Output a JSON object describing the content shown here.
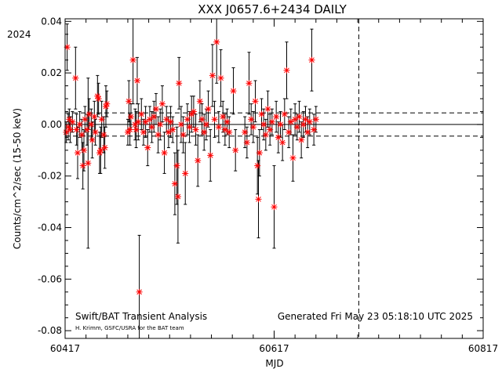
{
  "chart_data": {
    "type": "scatter",
    "title": "XXX J0657.6+2434 DAILY",
    "year_label": "2024",
    "xlabel": "MJD",
    "ylabel": "Counts/cm^2/sec (15-50 keV)",
    "xlim": [
      60417,
      60817
    ],
    "ylim": [
      -0.083,
      0.041
    ],
    "xticks": [
      60417,
      60617,
      60817
    ],
    "yticks": [
      -0.08,
      -0.06,
      -0.04,
      -0.02,
      0.0,
      0.02,
      0.04
    ],
    "ytick_labels": [
      "-0.08",
      "-0.06",
      "-0.04",
      "-0.02",
      "0.00",
      "0.02",
      "0.04"
    ],
    "reference_lines": {
      "zero": 0.0,
      "upper_dashed": 0.0045,
      "lower_dashed": -0.0045,
      "vertical_dashed_mjd": 60698
    },
    "footer_left": "Swift/BAT Transient Analysis",
    "footer_credit": "H. Krimm, GSFC/USRA for the BAT team",
    "footer_right": "Generated Fri May 23 05:18:10 UTC 2025",
    "marker_color": "#ff0000",
    "errorbar_color": "#000000",
    "series": [
      {
        "points": [
          {
            "x": 60418,
            "y": -0.003,
            "e": 0.004
          },
          {
            "x": 60419,
            "y": 0.03,
            "e": 0.009
          },
          {
            "x": 60420,
            "y": -0.001,
            "e": 0.005
          },
          {
            "x": 60421,
            "y": 0.002,
            "e": 0.004
          },
          {
            "x": 60422,
            "y": -0.002,
            "e": 0.005
          },
          {
            "x": 60424,
            "y": 0.001,
            "e": 0.004
          },
          {
            "x": 60427,
            "y": 0.018,
            "e": 0.012
          },
          {
            "x": 60428,
            "y": -0.002,
            "e": 0.006
          },
          {
            "x": 60429,
            "y": -0.011,
            "e": 0.01
          },
          {
            "x": 60431,
            "y": 0.0,
            "e": 0.005
          },
          {
            "x": 60433,
            "y": -0.004,
            "e": 0.006
          },
          {
            "x": 60434,
            "y": -0.016,
            "e": 0.009
          },
          {
            "x": 60435,
            "y": -0.01,
            "e": 0.008
          },
          {
            "x": 60436,
            "y": 0.002,
            "e": 0.005
          },
          {
            "x": 60438,
            "y": -0.002,
            "e": 0.006
          },
          {
            "x": 60439,
            "y": -0.015,
            "e": 0.033
          },
          {
            "x": 60440,
            "y": 0.004,
            "e": 0.006
          },
          {
            "x": 60442,
            "y": 0.0,
            "e": 0.006
          },
          {
            "x": 60443,
            "y": -0.006,
            "e": 0.007
          },
          {
            "x": 60445,
            "y": 0.003,
            "e": 0.006
          },
          {
            "x": 60446,
            "y": -0.003,
            "e": 0.005
          },
          {
            "x": 60448,
            "y": 0.011,
            "e": 0.008
          },
          {
            "x": 60449,
            "y": 0.01,
            "e": 0.006
          },
          {
            "x": 60450,
            "y": -0.011,
            "e": 0.008
          },
          {
            "x": 60451,
            "y": -0.01,
            "e": 0.009
          },
          {
            "x": 60452,
            "y": 0.002,
            "e": 0.007
          },
          {
            "x": 60454,
            "y": -0.004,
            "e": 0.007
          },
          {
            "x": 60455,
            "y": -0.009,
            "e": 0.008
          },
          {
            "x": 60456,
            "y": 0.007,
            "e": 0.008
          },
          {
            "x": 60457,
            "y": 0.008,
            "e": 0.005
          },
          {
            "x": 60477,
            "y": -0.003,
            "e": 0.005
          },
          {
            "x": 60478,
            "y": 0.009,
            "e": 0.008
          },
          {
            "x": 60479,
            "y": -0.002,
            "e": 0.006
          },
          {
            "x": 60480,
            "y": 0.003,
            "e": 0.005
          },
          {
            "x": 60482,
            "y": 0.025,
            "e": 0.017
          },
          {
            "x": 60484,
            "y": 0.0,
            "e": 0.006
          },
          {
            "x": 60485,
            "y": -0.002,
            "e": 0.007
          },
          {
            "x": 60486,
            "y": 0.017,
            "e": 0.009
          },
          {
            "x": 60487,
            "y": 0.001,
            "e": 0.007
          },
          {
            "x": 60488,
            "y": -0.065,
            "e": 0.022
          },
          {
            "x": 60490,
            "y": 0.004,
            "e": 0.006
          },
          {
            "x": 60492,
            "y": -0.003,
            "e": 0.005
          },
          {
            "x": 60494,
            "y": 0.001,
            "e": 0.006
          },
          {
            "x": 60496,
            "y": -0.009,
            "e": 0.007
          },
          {
            "x": 60498,
            "y": 0.002,
            "e": 0.005
          },
          {
            "x": 60500,
            "y": -0.001,
            "e": 0.006
          },
          {
            "x": 60502,
            "y": 0.003,
            "e": 0.006
          },
          {
            "x": 60504,
            "y": 0.006,
            "e": 0.006
          },
          {
            "x": 60506,
            "y": -0.004,
            "e": 0.007
          },
          {
            "x": 60508,
            "y": 0.0,
            "e": 0.006
          },
          {
            "x": 60510,
            "y": 0.008,
            "e": 0.007
          },
          {
            "x": 60512,
            "y": -0.011,
            "e": 0.008
          },
          {
            "x": 60514,
            "y": 0.002,
            "e": 0.005
          },
          {
            "x": 60516,
            "y": -0.003,
            "e": 0.006
          },
          {
            "x": 60518,
            "y": 0.001,
            "e": 0.006
          },
          {
            "x": 60520,
            "y": -0.002,
            "e": 0.005
          },
          {
            "x": 60522,
            "y": -0.023,
            "e": 0.012
          },
          {
            "x": 60524,
            "y": -0.016,
            "e": 0.015
          },
          {
            "x": 60525,
            "y": -0.028,
            "e": 0.018
          },
          {
            "x": 60526,
            "y": 0.016,
            "e": 0.01
          },
          {
            "x": 60528,
            "y": 0.0,
            "e": 0.007
          },
          {
            "x": 60530,
            "y": -0.004,
            "e": 0.007
          },
          {
            "x": 60532,
            "y": -0.019,
            "e": 0.012
          },
          {
            "x": 60534,
            "y": 0.002,
            "e": 0.006
          },
          {
            "x": 60536,
            "y": -0.001,
            "e": 0.006
          },
          {
            "x": 60538,
            "y": 0.004,
            "e": 0.007
          },
          {
            "x": 60540,
            "y": 0.005,
            "e": 0.006
          },
          {
            "x": 60542,
            "y": -0.002,
            "e": 0.006
          },
          {
            "x": 60544,
            "y": -0.014,
            "e": 0.01
          },
          {
            "x": 60546,
            "y": 0.009,
            "e": 0.008
          },
          {
            "x": 60548,
            "y": 0.002,
            "e": 0.006
          },
          {
            "x": 60550,
            "y": -0.003,
            "e": 0.007
          },
          {
            "x": 60552,
            "y": 0.0,
            "e": 0.006
          },
          {
            "x": 60554,
            "y": 0.006,
            "e": 0.007
          },
          {
            "x": 60556,
            "y": -0.012,
            "e": 0.01
          },
          {
            "x": 60558,
            "y": 0.019,
            "e": 0.012
          },
          {
            "x": 60560,
            "y": 0.002,
            "e": 0.007
          },
          {
            "x": 60562,
            "y": 0.032,
            "e": 0.016
          },
          {
            "x": 60564,
            "y": -0.001,
            "e": 0.006
          },
          {
            "x": 60566,
            "y": 0.018,
            "e": 0.011
          },
          {
            "x": 60568,
            "y": 0.003,
            "e": 0.006
          },
          {
            "x": 60570,
            "y": -0.002,
            "e": 0.006
          },
          {
            "x": 60572,
            "y": 0.001,
            "e": 0.005
          },
          {
            "x": 60574,
            "y": -0.003,
            "e": 0.006
          },
          {
            "x": 60578,
            "y": 0.013,
            "e": 0.009
          },
          {
            "x": 60580,
            "y": -0.01,
            "e": 0.008
          },
          {
            "x": 60589,
            "y": -0.003,
            "e": 0.006
          },
          {
            "x": 60591,
            "y": -0.007,
            "e": 0.006
          },
          {
            "x": 60593,
            "y": 0.016,
            "e": 0.012
          },
          {
            "x": 60595,
            "y": 0.002,
            "e": 0.006
          },
          {
            "x": 60597,
            "y": -0.001,
            "e": 0.006
          },
          {
            "x": 60599,
            "y": 0.009,
            "e": 0.008
          },
          {
            "x": 60601,
            "y": -0.016,
            "e": 0.011
          },
          {
            "x": 60602,
            "y": -0.029,
            "e": 0.015
          },
          {
            "x": 60603,
            "y": -0.011,
            "e": 0.009
          },
          {
            "x": 60605,
            "y": 0.004,
            "e": 0.006
          },
          {
            "x": 60607,
            "y": 0.0,
            "e": 0.006
          },
          {
            "x": 60609,
            "y": -0.004,
            "e": 0.006
          },
          {
            "x": 60611,
            "y": 0.006,
            "e": 0.007
          },
          {
            "x": 60613,
            "y": -0.002,
            "e": 0.006
          },
          {
            "x": 60615,
            "y": 0.001,
            "e": 0.005
          },
          {
            "x": 60617,
            "y": -0.032,
            "e": 0.016
          },
          {
            "x": 60619,
            "y": 0.003,
            "e": 0.006
          },
          {
            "x": 60621,
            "y": -0.005,
            "e": 0.006
          },
          {
            "x": 60623,
            "y": 0.0,
            "e": 0.005
          },
          {
            "x": 60625,
            "y": -0.007,
            "e": 0.007
          },
          {
            "x": 60627,
            "y": 0.004,
            "e": 0.006
          },
          {
            "x": 60629,
            "y": 0.021,
            "e": 0.011
          },
          {
            "x": 60631,
            "y": -0.003,
            "e": 0.006
          },
          {
            "x": 60633,
            "y": 0.001,
            "e": 0.005
          },
          {
            "x": 60635,
            "y": -0.013,
            "e": 0.009
          },
          {
            "x": 60637,
            "y": 0.002,
            "e": 0.006
          },
          {
            "x": 60639,
            "y": -0.001,
            "e": 0.005
          },
          {
            "x": 60641,
            "y": 0.003,
            "e": 0.006
          },
          {
            "x": 60643,
            "y": -0.006,
            "e": 0.007
          },
          {
            "x": 60645,
            "y": 0.0,
            "e": 0.005
          },
          {
            "x": 60647,
            "y": 0.002,
            "e": 0.005
          },
          {
            "x": 60649,
            "y": -0.003,
            "e": 0.006
          },
          {
            "x": 60651,
            "y": 0.001,
            "e": 0.005
          },
          {
            "x": 60653,
            "y": 0.025,
            "e": 0.012
          },
          {
            "x": 60655,
            "y": -0.002,
            "e": 0.006
          },
          {
            "x": 60657,
            "y": 0.002,
            "e": 0.005
          }
        ]
      }
    ]
  }
}
